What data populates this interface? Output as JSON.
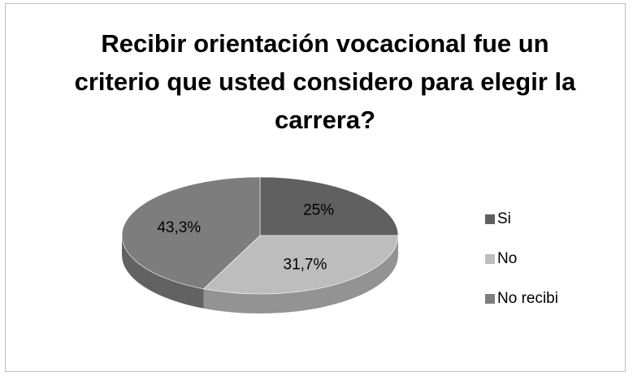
{
  "chart_data": {
    "type": "pie",
    "title": "Recibir orientación vocacional fue un criterio que usted  considero para elegir la carrera?",
    "categories": [
      "Si",
      "No",
      "No recibi"
    ],
    "values": [
      25,
      31.7,
      43.3
    ],
    "value_labels": [
      "25%",
      "31,7%",
      "43,3%"
    ],
    "colors": [
      "#606060",
      "#bdbdbd",
      "#7d7d7d"
    ],
    "legend": "right"
  }
}
